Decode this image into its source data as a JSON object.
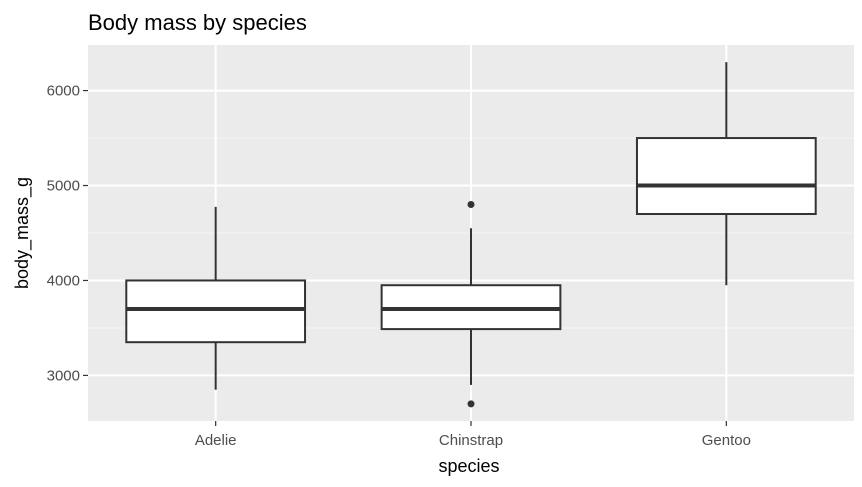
{
  "chart_data": {
    "type": "boxplot",
    "title": "Body mass by species",
    "xlabel": "species",
    "ylabel": "body_mass_g",
    "categories": [
      "Adelie",
      "Chinstrap",
      "Gentoo"
    ],
    "boxes": [
      {
        "category": "Adelie",
        "whisker_low": 2850,
        "q1": 3350,
        "median": 3700,
        "q3": 4000,
        "whisker_high": 4775,
        "outliers": []
      },
      {
        "category": "Chinstrap",
        "whisker_low": 2900,
        "q1": 3488,
        "median": 3700,
        "q3": 3950,
        "whisker_high": 4550,
        "outliers": [
          2700,
          4800
        ]
      },
      {
        "category": "Gentoo",
        "whisker_low": 3950,
        "q1": 4700,
        "median": 5000,
        "q3": 5500,
        "whisker_high": 6300,
        "outliers": []
      }
    ],
    "y_ticks": [
      3000,
      4000,
      5000,
      6000
    ],
    "y_tick_labels": [
      "3000",
      "4000",
      "5000",
      "6000"
    ],
    "ylim": [
      2520,
      6480
    ],
    "grid": true,
    "colors": {
      "panel_background": "#ebebeb",
      "grid_major": "#ffffff",
      "grid_minor": "#f5f5f5",
      "box_fill": "#ffffff",
      "box_stroke": "#333333",
      "tick_label": "#4d4d4d"
    }
  }
}
